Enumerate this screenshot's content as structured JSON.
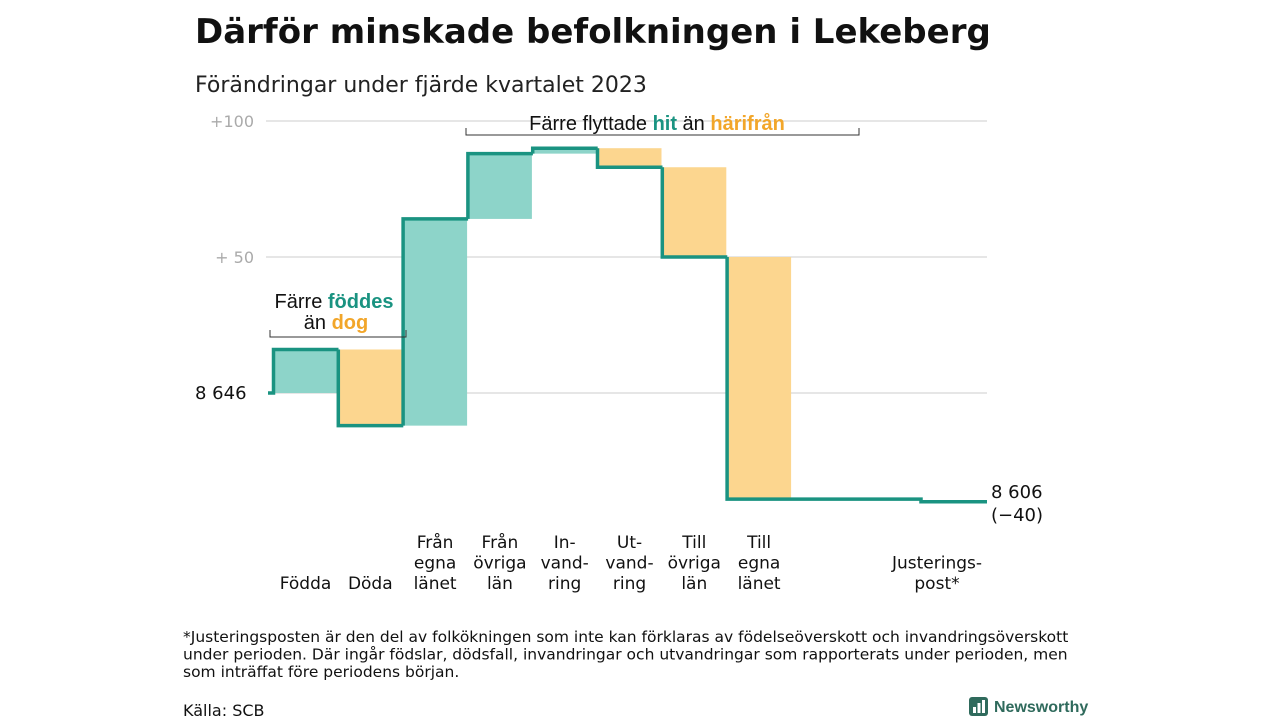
{
  "title": "Därför minskade befolkningen i Lekeberg",
  "subtitle": "Förändringar under fjärde kvartalet 2023",
  "colors": {
    "positive": "#8dd4c9",
    "negative": "#fcd68f",
    "line": "#1a9381",
    "teal_text": "#1a9381",
    "orange_text": "#f2a62a",
    "grid": "#dddddd"
  },
  "chart_data": {
    "type": "bar",
    "subtype": "waterfall",
    "start_value": 8646,
    "end_value": 8606,
    "end_label": "8 606",
    "end_change_label": "(−40)",
    "start_label": "8 646",
    "y_axis": {
      "ticks": [
        {
          "value": 8746,
          "label": "+100"
        },
        {
          "value": 8696,
          "label": "+  50"
        },
        {
          "value": 8646,
          "label": "8  646"
        }
      ],
      "ylim": [
        8600,
        8760
      ]
    },
    "categories": [
      {
        "lines": [
          "Födda"
        ],
        "change": 16
      },
      {
        "lines": [
          "Döda"
        ],
        "change": -28
      },
      {
        "lines": [
          "Från",
          "egna",
          "länet"
        ],
        "change": 76
      },
      {
        "lines": [
          "Från",
          "övriga",
          "län"
        ],
        "change": 24
      },
      {
        "lines": [
          "In-",
          "vand-",
          "ring"
        ],
        "change": 2
      },
      {
        "lines": [
          "Ut-",
          "vand-",
          "ring"
        ],
        "change": -7
      },
      {
        "lines": [
          "Till",
          "övriga",
          "län"
        ],
        "change": -33
      },
      {
        "lines": [
          "Till",
          "egna",
          "länet"
        ],
        "change": -89
      },
      {
        "lines": [
          "Justerings-",
          "post*"
        ],
        "change": -1
      }
    ],
    "annotations": {
      "births": {
        "line1_plain": "Färre ",
        "line1_bold": "föddes",
        "line2_plain": "än ",
        "line2_bold": "dog"
      },
      "migration": {
        "plain1": "Färre flyttade ",
        "bold1": "hit",
        "plain2": " än ",
        "bold2": "härifrån"
      }
    }
  },
  "footnote": [
    "*Justeringsposten är den del av folkökningen som inte kan förklaras av födelseöverskott och invandringsöverskott",
    "under perioden. Där ingår födslar, dödsfall, invandringar och utvandringar som rapporterats under perioden, men",
    "som inträffat före periodens början."
  ],
  "source": "Källa: SCB",
  "brand": "Newsworthy",
  "brand_icon": "bar-chart-logo-icon"
}
